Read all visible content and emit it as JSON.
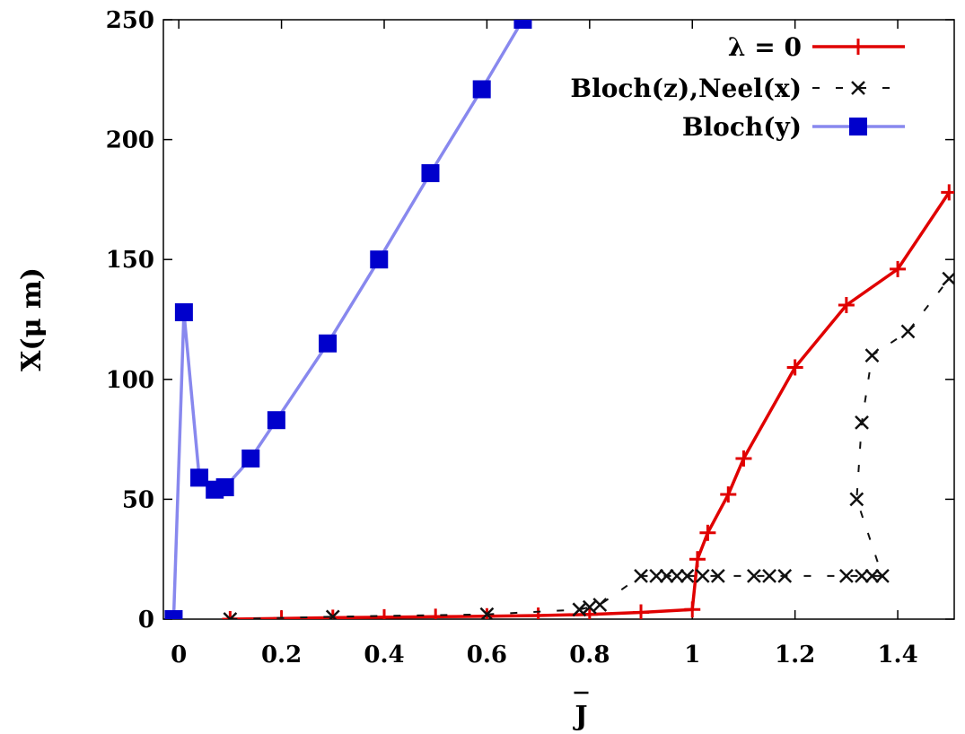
{
  "chart_data": {
    "type": "line",
    "xlabel": "J",
    "ylabel": "X(μ m)",
    "xlim": [
      -0.03,
      1.51
    ],
    "ylim": [
      0,
      250
    ],
    "xticks": [
      0,
      0.2,
      0.4,
      0.6,
      0.8,
      1,
      1.2,
      1.4
    ],
    "xtick_labels": [
      "0",
      "0.2",
      "0.4",
      "0.6",
      "0.8",
      "1",
      "1.2",
      "1.4"
    ],
    "yticks": [
      0,
      50,
      100,
      150,
      200,
      250
    ],
    "ytick_labels": [
      "0",
      "50",
      "100",
      "150",
      "200",
      "250"
    ],
    "grid": false,
    "legend_position": "top-right",
    "series": [
      {
        "name": "λ = 0",
        "color": "#e00000",
        "style": "solid",
        "marker": "plus",
        "x": [
          0.1,
          0.2,
          0.3,
          0.4,
          0.5,
          0.6,
          0.7,
          0.8,
          0.9,
          1.0,
          1.01,
          1.03,
          1.07,
          1.1,
          1.2,
          1.3,
          1.4,
          1.5
        ],
        "y": [
          0,
          0.3,
          0.6,
          0.8,
          1.0,
          1.2,
          1.5,
          2.0,
          2.8,
          4.0,
          25,
          36,
          52,
          67,
          105,
          131,
          146,
          178
        ]
      },
      {
        "name": "Bloch(z),Neel(x)",
        "color": "#111111",
        "style": "dashed",
        "marker": "cross",
        "x": [
          0.1,
          0.3,
          0.6,
          0.78,
          0.8,
          0.82,
          0.9,
          0.93,
          0.95,
          0.97,
          0.99,
          1.02,
          1.05,
          1.12,
          1.15,
          1.18,
          1.3,
          1.33,
          1.35,
          1.37,
          1.32,
          1.33,
          1.35,
          1.42,
          1.5
        ],
        "y": [
          0,
          1,
          2,
          4,
          5,
          6,
          18,
          18,
          18,
          18,
          18,
          18,
          18,
          18,
          18,
          18,
          18,
          18,
          18,
          18,
          50,
          82,
          110,
          120,
          142
        ]
      },
      {
        "name": "Bloch(y)",
        "color": "#0000cc",
        "line_color": "#8888ee",
        "style": "solid",
        "marker": "square",
        "x": [
          -0.01,
          0.01,
          0.04,
          0.07,
          0.09,
          0.14,
          0.19,
          0.29,
          0.39,
          0.49,
          0.59,
          0.67
        ],
        "y": [
          0,
          128,
          59,
          54,
          55,
          67,
          83,
          115,
          150,
          186,
          221,
          250
        ]
      }
    ]
  }
}
